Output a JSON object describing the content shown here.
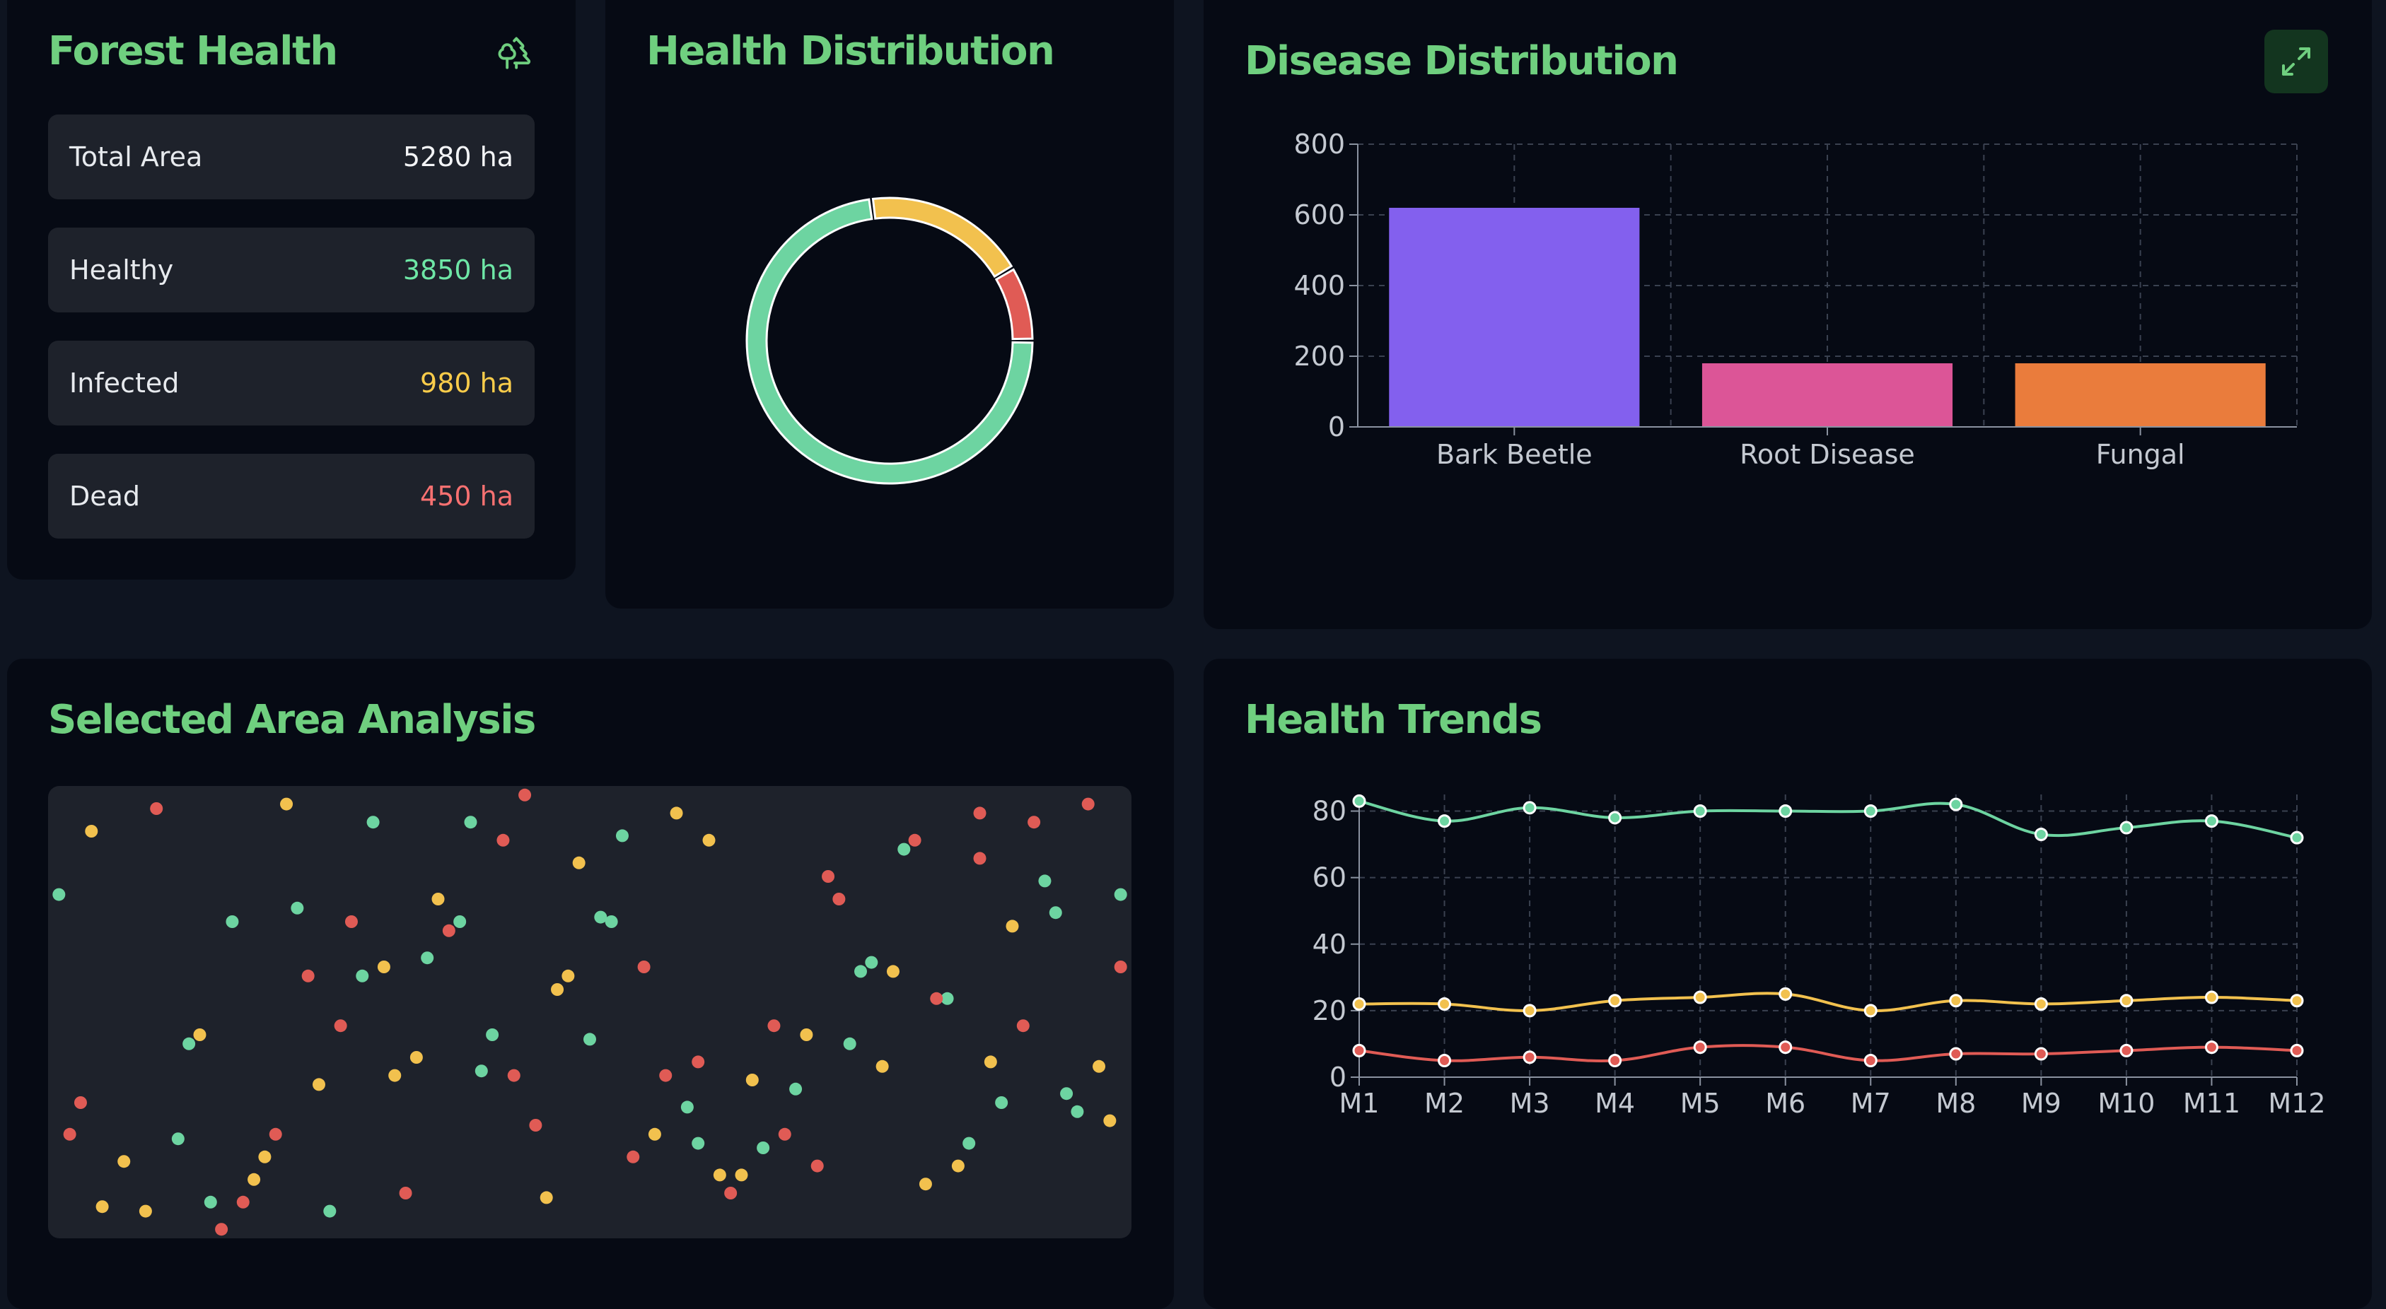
{
  "forest_health": {
    "title": "Forest Health",
    "icon": "tree-icon",
    "stats": [
      {
        "label": "Total Area",
        "value": "5280 ha",
        "color": "#f3f4f6"
      },
      {
        "label": "Healthy",
        "value": "3850 ha",
        "color": "#6ee7a6"
      },
      {
        "label": "Infected",
        "value": "980 ha",
        "color": "#facc4a"
      },
      {
        "label": "Dead",
        "value": "450 ha",
        "color": "#f87171"
      }
    ]
  },
  "health_distribution": {
    "title": "Health Distribution"
  },
  "disease_distribution": {
    "title": "Disease Distribution",
    "expand_icon": "expand-icon"
  },
  "selected_area": {
    "title": "Selected Area Analysis"
  },
  "health_trends": {
    "title": "Health Trends"
  },
  "colors": {
    "accent": "#6fcf7f",
    "healthy": "#6dd4a1",
    "infected": "#f2c14e",
    "dead": "#e05b55",
    "bark_beetle": "#8360ee",
    "root_disease": "#dc5597",
    "fungal": "#ea7c3c"
  },
  "chart_data": [
    {
      "type": "pie",
      "variant": "doughnut",
      "categories": [
        "Healthy",
        "Infected",
        "Dead"
      ],
      "values": [
        3850,
        980,
        450
      ],
      "colors": [
        "#6dd4a1",
        "#f2c14e",
        "#e05b55"
      ]
    },
    {
      "type": "bar",
      "categories": [
        "Bark Beetle",
        "Root Disease",
        "Fungal"
      ],
      "values": [
        620,
        180,
        180
      ],
      "colors": [
        "#8360ee",
        "#dc5597",
        "#ea7c3c"
      ],
      "ylim": [
        0,
        800
      ],
      "yticks": [
        0,
        200,
        400,
        600,
        800
      ],
      "grid": true
    },
    {
      "type": "line",
      "x": [
        "M1",
        "M2",
        "M3",
        "M4",
        "M5",
        "M6",
        "M7",
        "M8",
        "M9",
        "M10",
        "M11",
        "M12"
      ],
      "series": [
        {
          "color": "#6dd4a1",
          "values": [
            83,
            77,
            81,
            78,
            80,
            80,
            80,
            82,
            73,
            75,
            77,
            72
          ]
        },
        {
          "color": "#f2c14e",
          "values": [
            22,
            22,
            20,
            23,
            24,
            25,
            20,
            23,
            22,
            23,
            24,
            23
          ]
        },
        {
          "color": "#e05b55",
          "values": [
            8,
            5,
            6,
            5,
            9,
            9,
            5,
            7,
            7,
            8,
            9,
            8
          ]
        }
      ],
      "ylim": [
        0,
        85
      ],
      "yticks": [
        0,
        20,
        40,
        60,
        80
      ],
      "grid": true
    },
    {
      "type": "scatter",
      "x": [
        0.01,
        0.14,
        0.17,
        0.22,
        0.28,
        0.34,
        0.38,
        0.42,
        0.47,
        0.52,
        0.55,
        0.58,
        0.6,
        0.63,
        0.66,
        0.7,
        0.72,
        0.76,
        0.8,
        0.84,
        0.88,
        0.91,
        0.94,
        0.97,
        0.99,
        0.05,
        0.1,
        0.15,
        0.2,
        0.24,
        0.3,
        0.33,
        0.36,
        0.4,
        0.44,
        0.5,
        0.56,
        0.6,
        0.65,
        0.68,
        0.74,
        0.78,
        0.83,
        0.86,
        0.9,
        0.95,
        0.98,
        0.02,
        0.07,
        0.12,
        0.18,
        0.26,
        0.31,
        0.35,
        0.45,
        0.48,
        0.53,
        0.62,
        0.71,
        0.79,
        0.87,
        0.93,
        0.96,
        0.03,
        0.09,
        0.13,
        0.19,
        0.23,
        0.27,
        0.32,
        0.39,
        0.43,
        0.46,
        0.51,
        0.57,
        0.64,
        0.69,
        0.73,
        0.77,
        0.82,
        0.85,
        0.89,
        0.92,
        0.04,
        0.16,
        0.21,
        0.25,
        0.29,
        0.37,
        0.41,
        0.49,
        0.54,
        0.59,
        0.61,
        0.67,
        0.75,
        0.81,
        0.86,
        0.99
      ],
      "y": [
        0.24,
        0.55,
        0.3,
        0.04,
        0.3,
        0.6,
        0.3,
        0.12,
        0.45,
        0.3,
        0.4,
        0.06,
        0.79,
        0.9,
        0.8,
        0.55,
        0.2,
        0.39,
        0.12,
        0.84,
        0.7,
        0.08,
        0.68,
        0.62,
        0.4,
        0.93,
        0.05,
        0.92,
        0.82,
        0.42,
        0.08,
        0.9,
        0.25,
        0.63,
        0.02,
        0.56,
        0.77,
        0.61,
        0.65,
        0.77,
        0.57,
        0.41,
        0.47,
        0.16,
        0.53,
        0.72,
        0.74,
        0.77,
        0.83,
        0.78,
        0.92,
        0.94,
        0.4,
        0.38,
        0.75,
        0.42,
        0.11,
        0.86,
        0.84,
        0.14,
        0.61,
        0.28,
        0.04,
        0.7,
        0.94,
        0.57,
        0.87,
        0.27,
        0.53,
        0.64,
        0.08,
        0.64,
        0.91,
        0.29,
        0.64,
        0.86,
        0.67,
        0.25,
        0.62,
        0.47,
        0.79,
        0.31,
        0.21,
        0.1,
        0.98,
        0.77,
        0.66,
        0.42,
        0.32,
        0.55,
        0.17,
        0.82,
        0.71,
        0.12,
        0.53,
        0.41,
        0.88,
        0.06,
        0.24
      ],
      "status": [
        "healthy",
        "infected",
        "healthy",
        "infected",
        "dead",
        "infected",
        "healthy",
        "dead",
        "infected",
        "healthy",
        "dead",
        "infected",
        "healthy",
        "dead",
        "healthy",
        "infected",
        "dead",
        "healthy",
        "dead",
        "infected",
        "healthy",
        "dead",
        "healthy",
        "infected",
        "dead",
        "infected",
        "dead",
        "healthy",
        "infected",
        "dead",
        "healthy",
        "dead",
        "infected",
        "healthy",
        "dead",
        "healthy",
        "infected",
        "dead",
        "infected",
        "dead",
        "healthy",
        "infected",
        "healthy",
        "dead",
        "dead",
        "healthy",
        "infected",
        "dead",
        "infected",
        "healthy",
        "dead",
        "healthy",
        "infected",
        "healthy",
        "dead",
        "infected",
        "healthy",
        "infected",
        "dead",
        "healthy",
        "infected",
        "healthy",
        "dead",
        "dead",
        "infected",
        "healthy",
        "infected",
        "healthy",
        "dead",
        "infected",
        "healthy",
        "dead",
        "infected",
        "healthy",
        "dead",
        "infected",
        "healthy",
        "dead",
        "infected",
        "dead",
        "healthy",
        "infected",
        "healthy",
        "infected",
        "dead",
        "dead",
        "infected",
        "healthy",
        "dead",
        "healthy",
        "infected",
        "dead",
        "healthy",
        "infected",
        "dead",
        "healthy",
        "infected",
        "dead",
        "healthy"
      ]
    }
  ]
}
